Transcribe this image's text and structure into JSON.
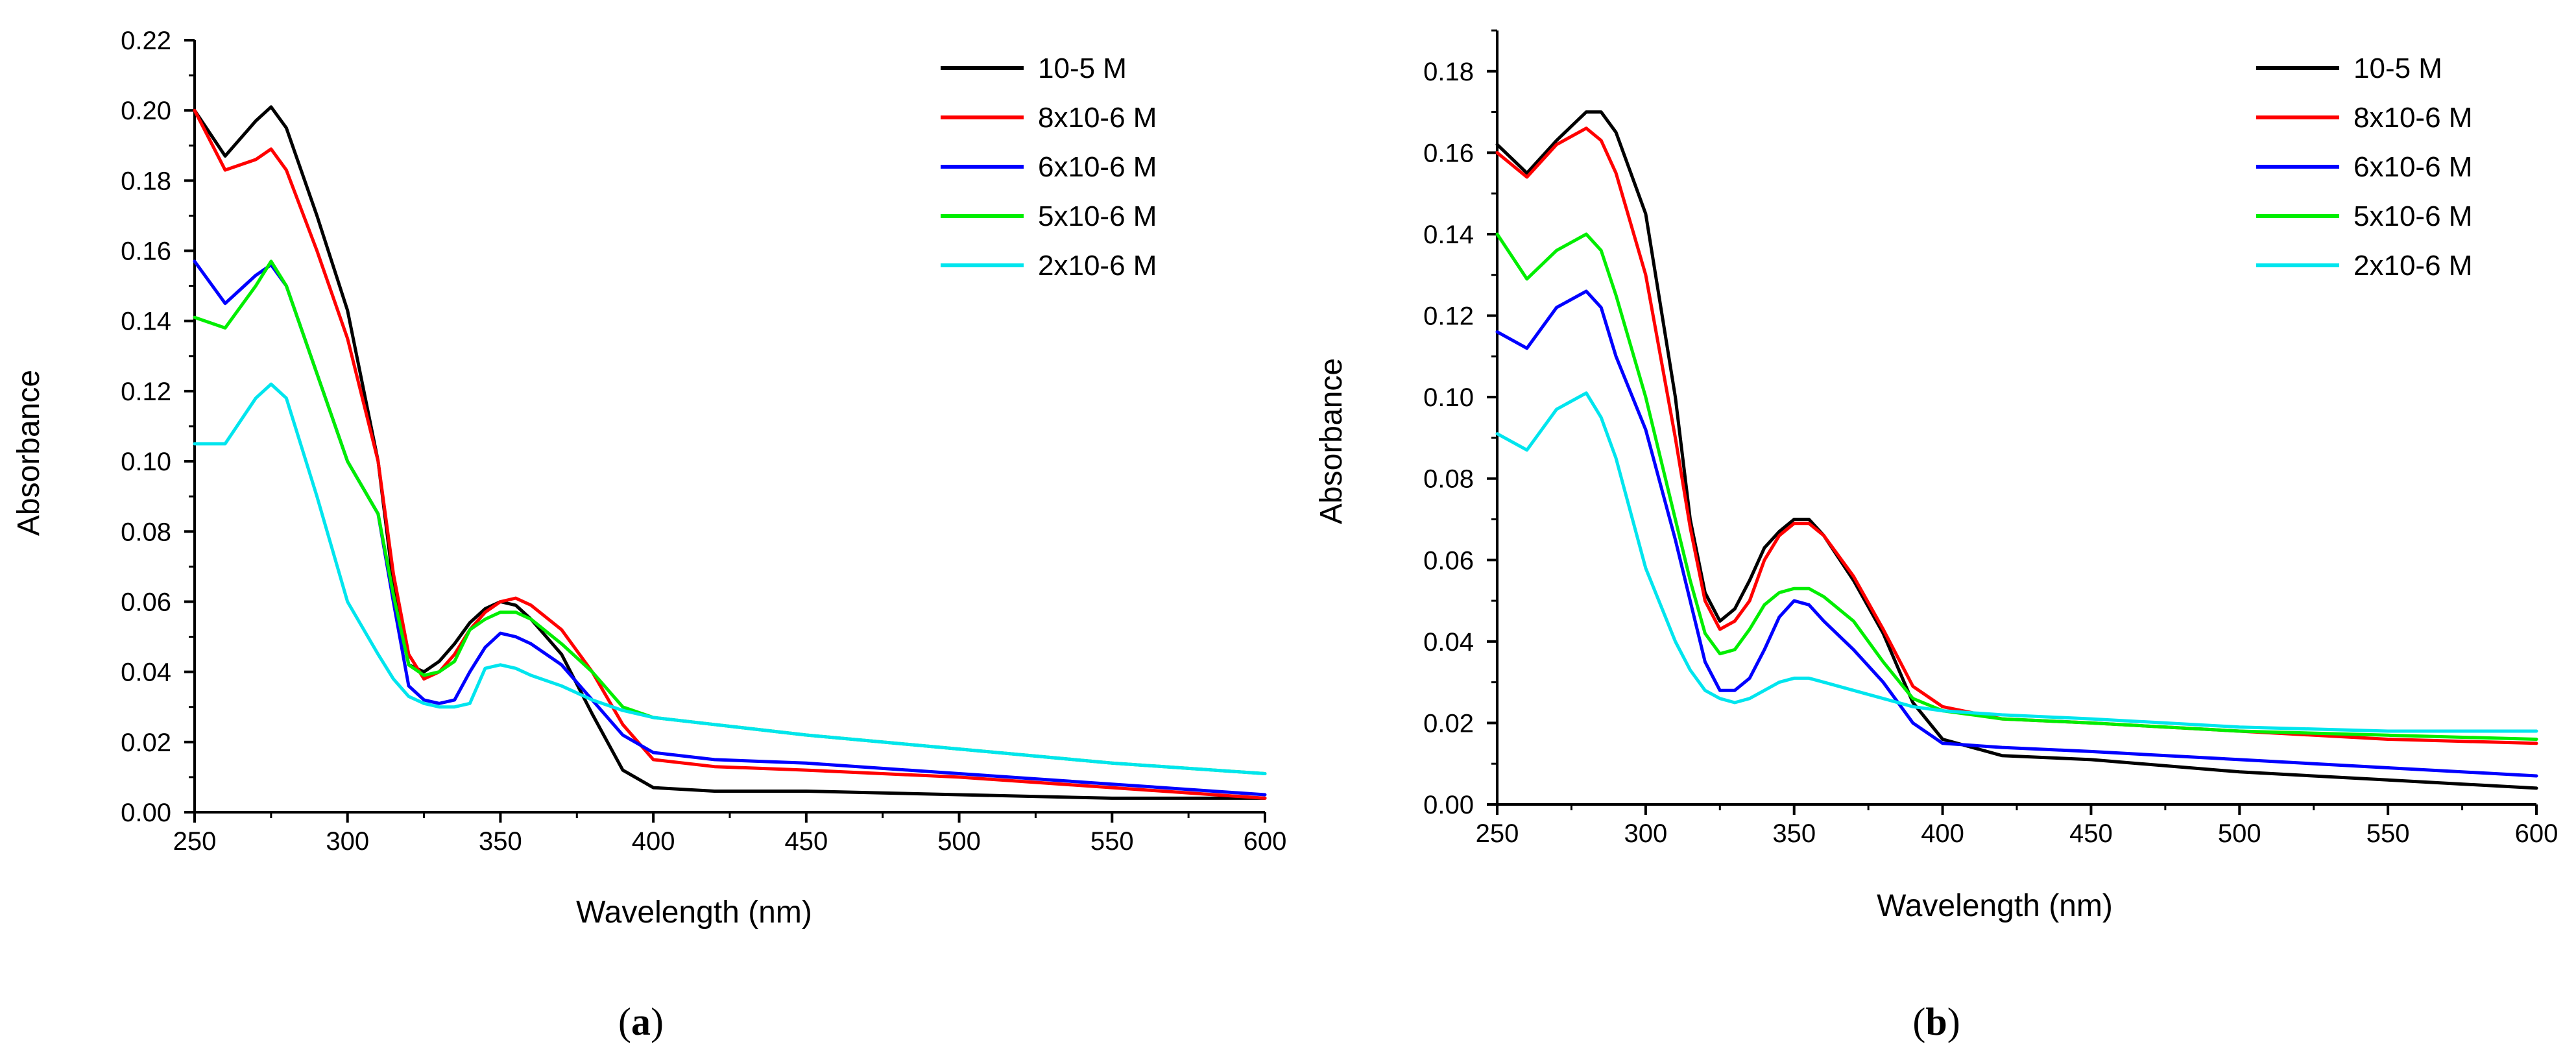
{
  "chart_data": [
    {
      "panel": "a",
      "type": "line",
      "xlabel": "Wavelength (nm)",
      "ylabel": "Absorbance",
      "xlim": [
        250,
        600
      ],
      "ylim": [
        0,
        0.22
      ],
      "xticks": [
        250,
        300,
        350,
        400,
        450,
        500,
        550,
        600
      ],
      "xtick_labels": [
        "250",
        "300",
        "350",
        "400",
        "450",
        "500",
        "550",
        "600"
      ],
      "yticks": [
        0,
        0.02,
        0.04,
        0.06,
        0.08,
        0.1,
        0.12,
        0.14,
        0.16,
        0.18,
        0.2,
        0.22
      ],
      "ytick_labels": [
        "0.00",
        "0.02",
        "0.04",
        "0.06",
        "0.08",
        "0.10",
        "0.12",
        "0.14",
        "0.16",
        "0.18",
        "0.20",
        "0.22"
      ],
      "legend_position": "top-right",
      "x": [
        250,
        260,
        270,
        275,
        280,
        290,
        300,
        310,
        315,
        320,
        325,
        330,
        335,
        340,
        345,
        350,
        355,
        360,
        370,
        380,
        390,
        400,
        420,
        450,
        500,
        550,
        600
      ],
      "series": [
        {
          "name": "10-5 M",
          "color": "#000000",
          "values": [
            0.2,
            0.187,
            0.197,
            0.201,
            0.195,
            0.17,
            0.143,
            0.1,
            0.065,
            0.042,
            0.04,
            0.043,
            0.048,
            0.054,
            0.058,
            0.06,
            0.059,
            0.055,
            0.045,
            0.028,
            0.012,
            0.007,
            0.006,
            0.006,
            0.005,
            0.004,
            0.004
          ]
        },
        {
          "name": "8x10-6 M",
          "color": "#ff0000",
          "values": [
            0.2,
            0.183,
            0.186,
            0.189,
            0.183,
            0.16,
            0.135,
            0.1,
            0.068,
            0.045,
            0.038,
            0.04,
            0.045,
            0.052,
            0.057,
            0.06,
            0.061,
            0.059,
            0.052,
            0.04,
            0.025,
            0.015,
            0.013,
            0.012,
            0.01,
            0.007,
            0.004
          ]
        },
        {
          "name": "6x10-6 M",
          "color": "#0000ff",
          "values": [
            0.157,
            0.145,
            0.153,
            0.156,
            0.15,
            0.125,
            0.1,
            0.085,
            0.06,
            0.036,
            0.032,
            0.031,
            0.032,
            0.04,
            0.047,
            0.051,
            0.05,
            0.048,
            0.042,
            0.032,
            0.022,
            0.017,
            0.015,
            0.014,
            0.011,
            0.008,
            0.005
          ]
        },
        {
          "name": "5x10-6 M",
          "color": "#00ee00",
          "values": [
            0.141,
            0.138,
            0.15,
            0.157,
            0.15,
            0.125,
            0.1,
            0.085,
            0.062,
            0.042,
            0.039,
            0.04,
            0.043,
            0.052,
            0.055,
            0.057,
            0.057,
            0.055,
            0.048,
            0.04,
            0.03,
            0.027,
            0.025,
            0.022,
            0.018,
            0.014,
            0.011
          ]
        },
        {
          "name": "2x10-6 M",
          "color": "#00e5ee",
          "values": [
            0.105,
            0.105,
            0.118,
            0.122,
            0.118,
            0.09,
            0.06,
            0.045,
            0.038,
            0.033,
            0.031,
            0.03,
            0.03,
            0.031,
            0.041,
            0.042,
            0.041,
            0.039,
            0.036,
            0.032,
            0.029,
            0.027,
            0.025,
            0.022,
            0.018,
            0.014,
            0.011
          ]
        }
      ]
    },
    {
      "panel": "b",
      "type": "line",
      "xlabel": "Wavelength (nm)",
      "ylabel": "Absorbance",
      "xlim": [
        250,
        600
      ],
      "ylim": [
        0,
        0.19
      ],
      "xticks": [
        250,
        300,
        350,
        400,
        450,
        500,
        550,
        600
      ],
      "xtick_labels": [
        "250",
        "300",
        "350",
        "400",
        "450",
        "500",
        "550",
        "600"
      ],
      "yticks": [
        0,
        0.02,
        0.04,
        0.06,
        0.08,
        0.1,
        0.12,
        0.14,
        0.16,
        0.18
      ],
      "ytick_labels": [
        "0.00",
        "0.02",
        "0.04",
        "0.06",
        "0.08",
        "0.10",
        "0.12",
        "0.14",
        "0.16",
        "0.18"
      ],
      "legend_position": "top-right",
      "x": [
        250,
        260,
        270,
        280,
        285,
        290,
        300,
        310,
        315,
        320,
        325,
        330,
        335,
        340,
        345,
        350,
        355,
        360,
        370,
        380,
        390,
        400,
        420,
        450,
        500,
        550,
        600
      ],
      "series": [
        {
          "name": "10-5 M",
          "color": "#000000",
          "values": [
            0.162,
            0.155,
            0.163,
            0.17,
            0.17,
            0.165,
            0.145,
            0.1,
            0.07,
            0.052,
            0.045,
            0.048,
            0.055,
            0.063,
            0.067,
            0.07,
            0.07,
            0.066,
            0.055,
            0.042,
            0.025,
            0.016,
            0.012,
            0.011,
            0.008,
            0.006,
            0.004
          ]
        },
        {
          "name": "8x10-6 M",
          "color": "#ff0000",
          "values": [
            0.16,
            0.154,
            0.162,
            0.166,
            0.163,
            0.155,
            0.13,
            0.09,
            0.068,
            0.05,
            0.043,
            0.045,
            0.05,
            0.06,
            0.066,
            0.069,
            0.069,
            0.066,
            0.056,
            0.043,
            0.029,
            0.024,
            0.021,
            0.02,
            0.018,
            0.016,
            0.015
          ]
        },
        {
          "name": "6x10-6 M",
          "color": "#0000ff",
          "values": [
            0.116,
            0.112,
            0.122,
            0.126,
            0.122,
            0.11,
            0.092,
            0.065,
            0.05,
            0.035,
            0.028,
            0.028,
            0.031,
            0.038,
            0.046,
            0.05,
            0.049,
            0.045,
            0.038,
            0.03,
            0.02,
            0.015,
            0.014,
            0.013,
            0.011,
            0.009,
            0.007
          ]
        },
        {
          "name": "5x10-6 M",
          "color": "#00ee00",
          "values": [
            0.14,
            0.129,
            0.136,
            0.14,
            0.136,
            0.125,
            0.1,
            0.07,
            0.055,
            0.042,
            0.037,
            0.038,
            0.043,
            0.049,
            0.052,
            0.053,
            0.053,
            0.051,
            0.045,
            0.035,
            0.026,
            0.023,
            0.021,
            0.02,
            0.018,
            0.017,
            0.016
          ]
        },
        {
          "name": "2x10-6 M",
          "color": "#00e5ee",
          "values": [
            0.091,
            0.087,
            0.097,
            0.101,
            0.095,
            0.085,
            0.058,
            0.04,
            0.033,
            0.028,
            0.026,
            0.025,
            0.026,
            0.028,
            0.03,
            0.031,
            0.031,
            0.03,
            0.028,
            0.026,
            0.024,
            0.023,
            0.022,
            0.021,
            0.019,
            0.018,
            0.018
          ]
        }
      ]
    }
  ],
  "panel_labels": [
    {
      "open": "(",
      "letter": "a",
      "close": ")"
    },
    {
      "open": "(",
      "letter": "b",
      "close": ")"
    }
  ]
}
